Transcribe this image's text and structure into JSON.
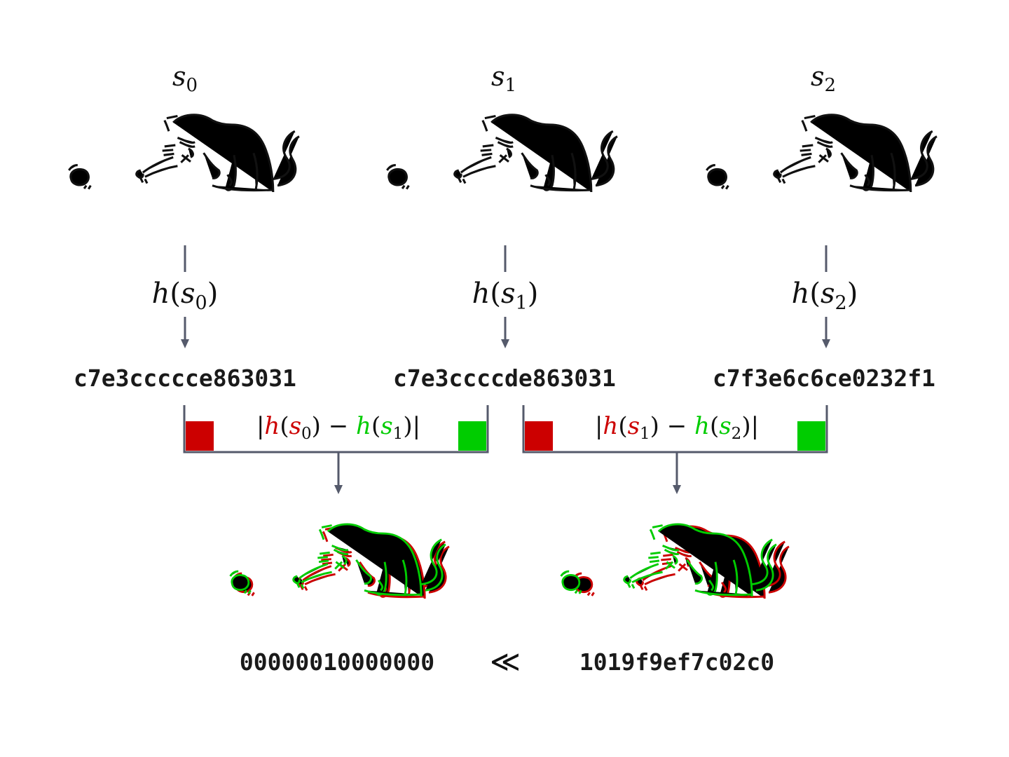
{
  "states": [
    {
      "label_base": "s",
      "label_sub": "0",
      "fn": "h",
      "hash": "c7e3ccccce863031"
    },
    {
      "label_base": "s",
      "label_sub": "1",
      "fn": "h",
      "hash": "c7e3ccccde863031"
    },
    {
      "label_base": "s",
      "label_sub": "2",
      "fn": "h",
      "hash": "c7f3e6c6ce0232f1"
    }
  ],
  "differences": [
    {
      "left_sub": "0",
      "right_sub": "1",
      "result": "00000010000000"
    },
    {
      "left_sub": "1",
      "right_sub": "2",
      "result": "1019f9ef7c02c0"
    }
  ],
  "comparison_symbol": "≪",
  "colors": {
    "left": "#cc0000",
    "right": "#00cc00",
    "arrow": "#555a6b",
    "ink": "#111111"
  }
}
